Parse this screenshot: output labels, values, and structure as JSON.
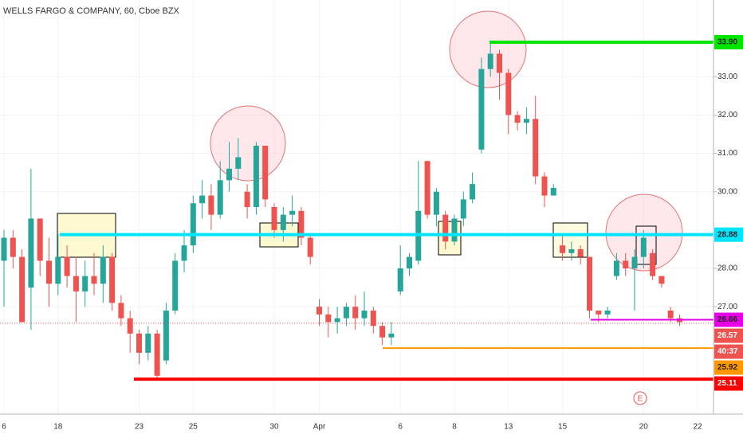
{
  "chart_data": {
    "type": "candlestick",
    "title": "WELLS FARGO & COMPANY, 60, Cboe BZX",
    "categories": [
      "6",
      null,
      null,
      null,
      null,
      null,
      "18",
      null,
      null,
      null,
      null,
      null,
      null,
      null,
      null,
      "23",
      null,
      null,
      null,
      null,
      null,
      "25",
      null,
      null,
      null,
      null,
      null,
      null,
      null,
      null,
      "30",
      null,
      null,
      null,
      null,
      "Apr",
      null,
      null,
      null,
      null,
      null,
      null,
      null,
      null,
      "6",
      null,
      null,
      null,
      null,
      null,
      "8",
      null,
      null,
      null,
      null,
      null,
      "13",
      null,
      null,
      null,
      null,
      null,
      "15",
      null,
      null,
      null,
      null,
      null,
      null,
      null,
      null,
      "20",
      null,
      null,
      null,
      null,
      null,
      "22"
    ],
    "open": [
      28.2,
      28.8,
      28.3,
      27.5,
      29.3,
      28.2,
      27.6,
      28.3,
      27.8,
      27.4,
      27.8,
      27.6,
      28.3,
      27.1,
      26.7,
      26.3,
      25.8,
      26.3,
      25.6,
      26.9,
      28.2,
      28.6,
      29.7,
      29.9,
      29.4,
      30.3,
      30.6,
      30.0,
      29.6,
      31.2,
      29.6,
      29.0,
      29.4,
      29.5,
      28.8,
      27.0,
      26.8,
      26.6,
      26.7,
      27.0,
      26.7,
      26.9,
      26.5,
      26.2,
      27.4,
      28.0,
      28.2,
      30.8,
      29.4,
      29.4,
      28.7,
      29.3,
      29.8,
      31.1,
      33.2,
      33.6,
      33.1,
      32.0,
      31.8,
      31.9,
      30.4,
      29.9,
      28.6,
      28.4,
      28.5,
      28.3,
      26.9,
      26.8,
      27.8,
      28.2,
      28.0,
      28.3,
      28.4,
      27.8,
      26.9,
      26.7,
      null,
      null
    ],
    "high": [
      29.0,
      29.0,
      28.5,
      30.6,
      29.3,
      28.8,
      28.9,
      28.6,
      28.3,
      28.2,
      28.4,
      28.6,
      28.4,
      27.3,
      26.9,
      26.4,
      26.5,
      26.4,
      27.1,
      28.4,
      29.0,
      29.9,
      30.3,
      30.2,
      30.8,
      31.3,
      31.4,
      30.2,
      31.3,
      31.2,
      29.7,
      29.6,
      29.9,
      29.6,
      28.9,
      27.2,
      27.0,
      27.0,
      27.1,
      27.3,
      27.4,
      27.0,
      26.6,
      26.6,
      28.6,
      28.4,
      30.8,
      30.8,
      30.1,
      29.5,
      29.4,
      30.0,
      30.5,
      33.5,
      33.9,
      33.7,
      33.2,
      32.1,
      32.2,
      32.5,
      30.5,
      30.2,
      28.9,
      28.7,
      28.6,
      28.3,
      26.9,
      27.0,
      28.4,
      28.4,
      28.5,
      29.0,
      28.5,
      27.8,
      27.0,
      26.8,
      null,
      null
    ],
    "low": [
      27.0,
      28.0,
      26.6,
      26.4,
      27.8,
      27.0,
      27.3,
      27.5,
      26.6,
      27.0,
      27.3,
      27.1,
      26.9,
      26.5,
      25.8,
      25.5,
      25.6,
      25.1,
      25.5,
      26.8,
      27.9,
      28.4,
      29.3,
      29.0,
      29.3,
      30.0,
      30.3,
      29.3,
      29.4,
      29.6,
      28.8,
      28.7,
      29.1,
      28.6,
      28.1,
      26.5,
      26.2,
      26.3,
      26.5,
      26.4,
      26.5,
      26.3,
      26.0,
      26.0,
      27.3,
      27.8,
      28.1,
      29.3,
      29.1,
      28.5,
      28.6,
      29.1,
      29.7,
      31.0,
      33.0,
      32.4,
      31.5,
      31.6,
      31.5,
      30.2,
      29.6,
      29.9,
      28.2,
      28.2,
      28.1,
      26.7,
      26.6,
      26.7,
      27.7,
      27.8,
      26.9,
      28.0,
      27.7,
      27.5,
      26.6,
      26.5,
      null,
      null
    ],
    "close": [
      28.8,
      28.3,
      26.6,
      29.3,
      28.2,
      27.6,
      28.3,
      27.8,
      27.4,
      27.8,
      27.6,
      28.3,
      27.1,
      26.7,
      26.3,
      25.8,
      26.3,
      25.2,
      26.9,
      28.2,
      28.6,
      29.7,
      29.9,
      29.4,
      30.3,
      30.6,
      30.9,
      29.6,
      31.2,
      29.8,
      29.0,
      29.4,
      29.5,
      28.8,
      28.3,
      26.8,
      26.6,
      26.7,
      27.0,
      26.7,
      26.9,
      26.5,
      26.2,
      26.3,
      28.0,
      28.3,
      29.5,
      29.4,
      30.0,
      28.7,
      29.3,
      29.8,
      30.2,
      33.2,
      33.6,
      33.1,
      32.0,
      31.8,
      31.9,
      30.4,
      29.9,
      30.1,
      28.4,
      28.5,
      28.3,
      26.9,
      26.8,
      26.9,
      28.2,
      28.0,
      28.3,
      28.8,
      27.8,
      27.6,
      26.7,
      26.6,
      null,
      null
    ],
    "up_color": "#26a69a",
    "down_color": "#ef5350",
    "ylim": [
      24.2,
      35.0
    ],
    "yticks": [
      {
        "value": 27,
        "label": "27.00"
      },
      {
        "value": 28,
        "label": "28.00"
      },
      {
        "value": 30,
        "label": "30.00"
      },
      {
        "value": 31,
        "label": "31.00"
      },
      {
        "value": 32,
        "label": "32.00"
      },
      {
        "value": 33,
        "label": "33.00"
      }
    ],
    "price_lines": [
      {
        "value": 33.9,
        "label": "33.90",
        "color": "#00e600"
      },
      {
        "value": 28.88,
        "label": "28.88",
        "color": "#00e5ff"
      },
      {
        "value": 26.66,
        "label": "26.66",
        "color": "#e600e6"
      },
      {
        "value": 25.92,
        "label": "25.92",
        "color": "#ff9800"
      },
      {
        "value": 25.11,
        "label": "25.11",
        "color": "#ff0000"
      }
    ],
    "last_price": {
      "value": 26.57,
      "label": "26.57",
      "countdown": "40:37",
      "color": "#ef5350"
    },
    "earnings_marker": "E"
  }
}
